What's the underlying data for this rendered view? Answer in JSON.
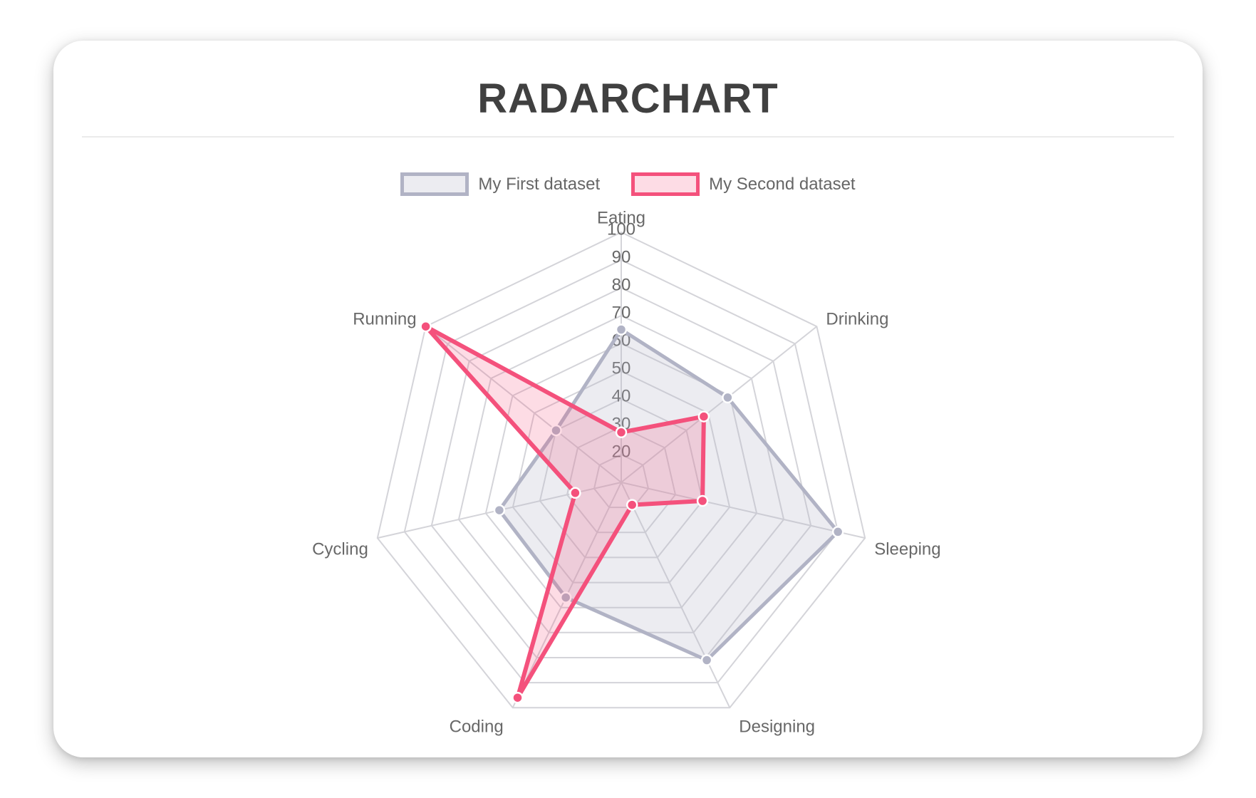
{
  "title": "RADARCHART",
  "chart_data": {
    "type": "radar",
    "categories": [
      "Eating",
      "Drinking",
      "Sleeping",
      "Designing",
      "Coding",
      "Cycling",
      "Running"
    ],
    "series": [
      {
        "name": "My First dataset",
        "values": [
          65,
          59,
          90,
          81,
          56,
          55,
          40
        ],
        "border_color": "#b1b3c5",
        "fill_color": "rgba(179,181,198,0.25)",
        "point_color": "#b1b3c5",
        "line_width": 5
      },
      {
        "name": "My Second dataset",
        "values": [
          28,
          48,
          40,
          19,
          96,
          27,
          100
        ],
        "border_color": "#f4517c",
        "fill_color": "rgba(244,81,124,0.2)",
        "point_color": "#f4517c",
        "line_width": 6
      }
    ],
    "scale": {
      "min": 10,
      "max": 100,
      "step": 10,
      "tick_labels": [
        "20",
        "30",
        "40",
        "50",
        "60",
        "70",
        "80",
        "90",
        "100"
      ]
    },
    "legend_position": "top",
    "grid": true,
    "grid_color": "#d4d4d9",
    "label_color": "#686868"
  },
  "colors": {
    "title": "#404040",
    "card_background": "#ffffff",
    "point_border": "#ffffff"
  }
}
